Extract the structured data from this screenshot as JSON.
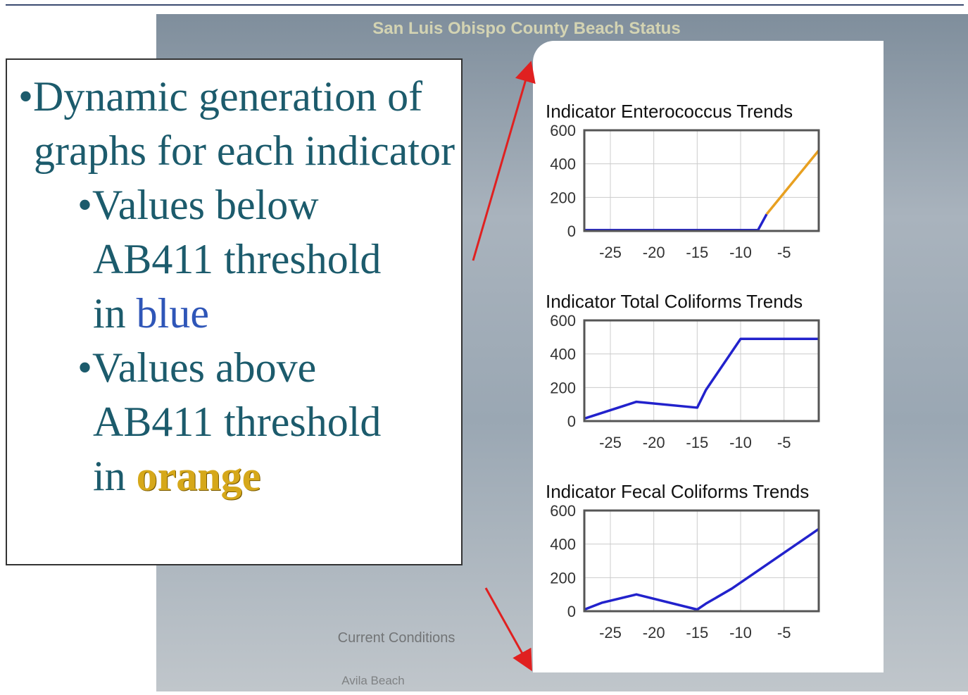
{
  "background": {
    "title": "San Luis Obispo County Beach Status",
    "section": "Current Conditions",
    "place": "Avila Beach"
  },
  "slide": {
    "bullets": [
      {
        "level": 1,
        "segments": [
          "Dynamic generation of graphs for each indicator"
        ]
      },
      {
        "level": 2,
        "segments": [
          "Values below AB411 threshold in ",
          "blue"
        ]
      },
      {
        "level": 2,
        "segments": [
          "Values above AB411 threshold in ",
          "orange"
        ]
      }
    ]
  },
  "chart_data": [
    {
      "type": "line",
      "title": "Indicator Enterococcus Trends",
      "x": [
        -28,
        -8,
        -7,
        -1
      ],
      "series": [
        {
          "color": "#2222cc",
          "values": [
            5,
            5,
            100,
            null
          ]
        },
        {
          "color": "#e8a020",
          "values": [
            null,
            null,
            100,
            480
          ]
        }
      ],
      "xlim": [
        -28,
        -1
      ],
      "xticks": [
        -25,
        -20,
        -15,
        -10,
        -5
      ],
      "ylim": [
        0,
        600
      ],
      "yticks": [
        0,
        200,
        400,
        600
      ],
      "grid": true
    },
    {
      "type": "line",
      "title": "Indicator Total Coliforms Trends",
      "x": [
        -28,
        -22,
        -15,
        -14,
        -10,
        -1
      ],
      "series": [
        {
          "color": "#2222cc",
          "values": [
            15,
            115,
            80,
            185,
            490,
            490
          ]
        }
      ],
      "xlim": [
        -28,
        -1
      ],
      "xticks": [
        -25,
        -20,
        -15,
        -10,
        -5
      ],
      "ylim": [
        0,
        600
      ],
      "yticks": [
        0,
        200,
        400,
        600
      ],
      "grid": true
    },
    {
      "type": "line",
      "title": "Indicator Fecal Coliforms Trends",
      "x": [
        -28,
        -26,
        -22,
        -15,
        -14,
        -11,
        -1
      ],
      "series": [
        {
          "color": "#2222cc",
          "values": [
            10,
            50,
            100,
            10,
            45,
            135,
            490
          ]
        }
      ],
      "xlim": [
        -28,
        -1
      ],
      "xticks": [
        -25,
        -20,
        -15,
        -10,
        -5
      ],
      "ylim": [
        0,
        600
      ],
      "yticks": [
        0,
        200,
        400,
        600
      ],
      "grid": true
    }
  ]
}
